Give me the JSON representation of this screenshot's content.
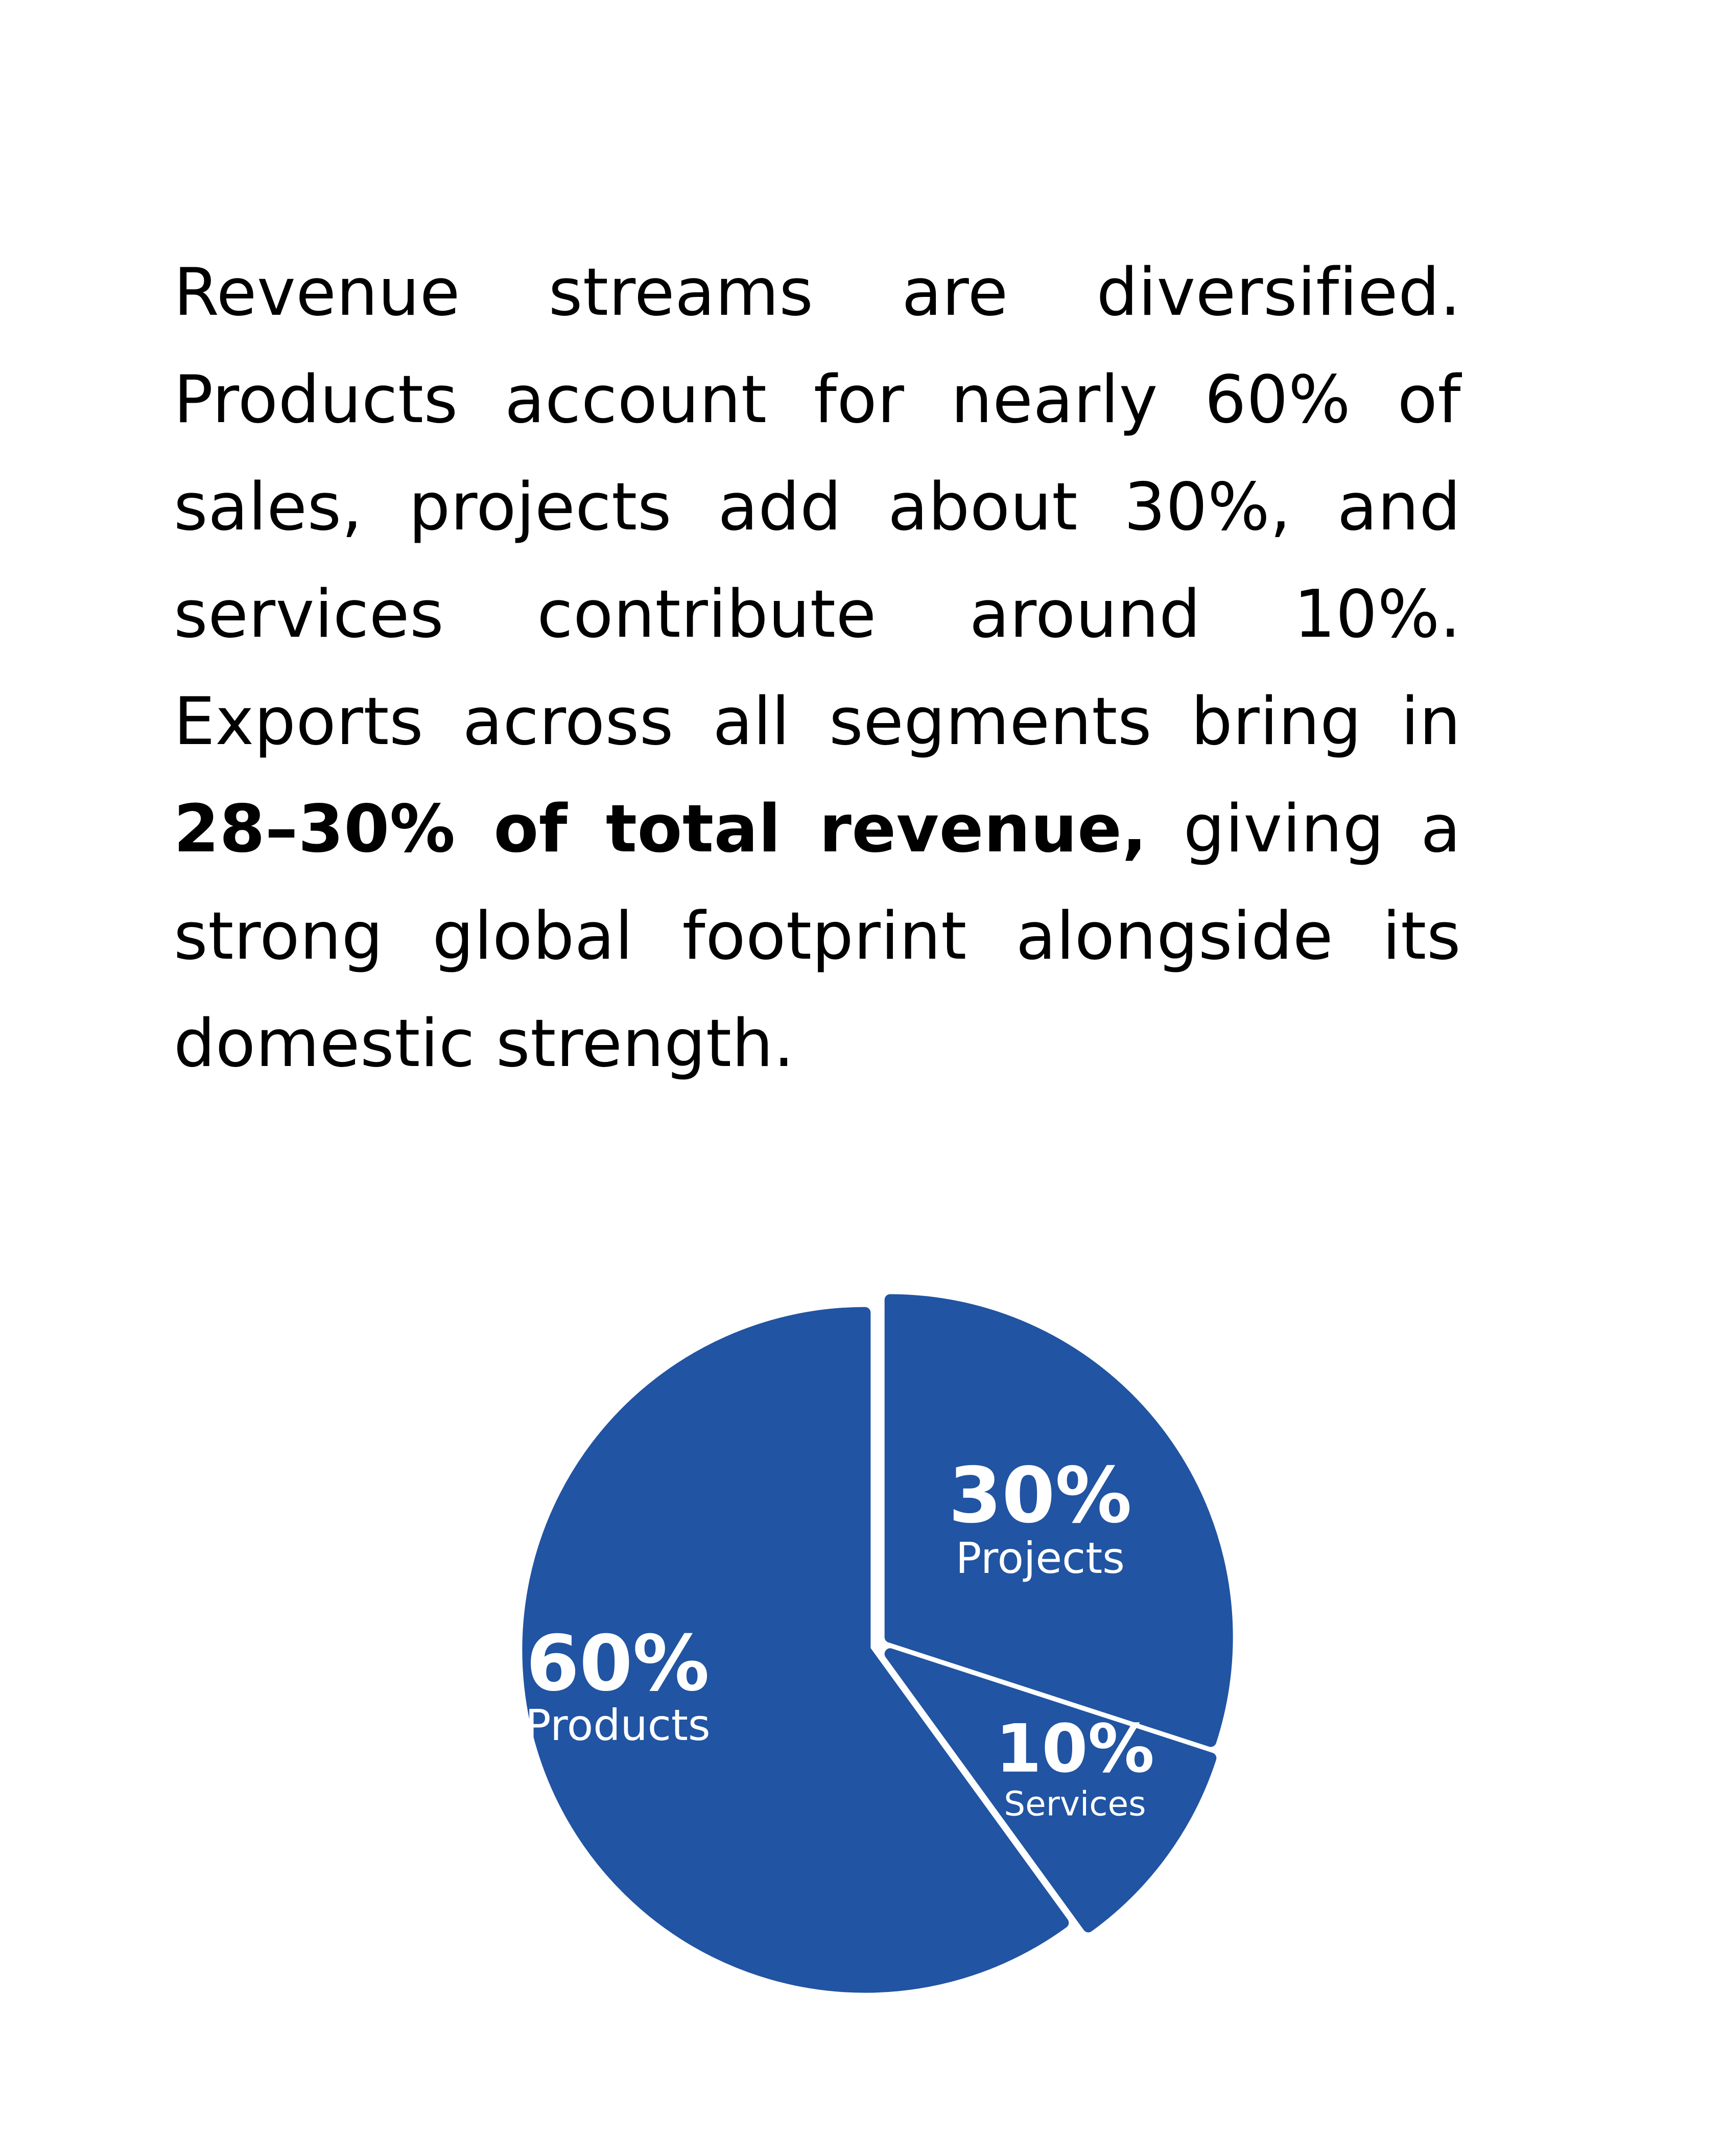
{
  "paragraph": {
    "part1": "Revenue streams are diversified. Products account for nearly 60% of sales, projects add about 30%, and services contribute around 10%. Exports across all segments bring in ",
    "bold": "28–30% of total revenue,",
    "part2": " giving a strong global footprint alongside its domestic strength."
  },
  "chart_data": {
    "type": "pie",
    "slices": [
      {
        "category": "Projects",
        "value": 30,
        "label": "30%"
      },
      {
        "category": "Services",
        "value": 10,
        "label": "10%"
      },
      {
        "category": "Products",
        "value": 60,
        "label": "60%"
      }
    ],
    "color": "#2154A2",
    "legend": "none"
  }
}
